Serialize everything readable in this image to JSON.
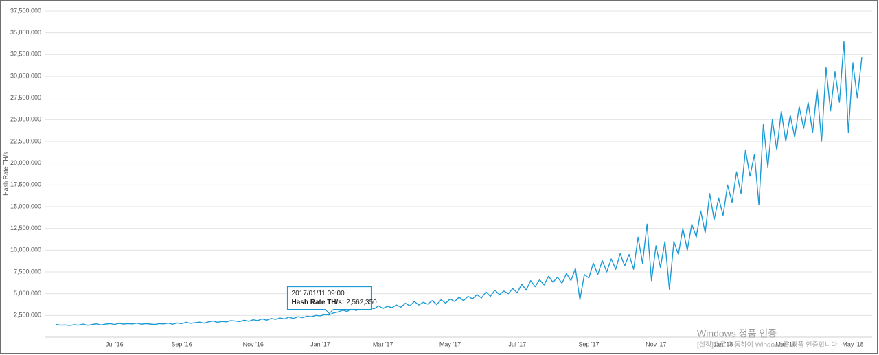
{
  "chart_data": {
    "type": "line",
    "y_label": "Hash Rate TH/s",
    "color": "#1a9ad6",
    "grid": true,
    "ylim": [
      0,
      37500000
    ],
    "yticks": [
      {
        "value": 2500000,
        "label": "2,500,000"
      },
      {
        "value": 5000000,
        "label": "5,000,000"
      },
      {
        "value": 7500000,
        "label": "7,500,000"
      },
      {
        "value": 10000000,
        "label": "10,000,000"
      },
      {
        "value": 12500000,
        "label": "12,500,000"
      },
      {
        "value": 15000000,
        "label": "15,000,000"
      },
      {
        "value": 17500000,
        "label": "17,500,000"
      },
      {
        "value": 20000000,
        "label": "20,000,000"
      },
      {
        "value": 22500000,
        "label": "22,500,000"
      },
      {
        "value": 25000000,
        "label": "25,000,000"
      },
      {
        "value": 27500000,
        "label": "27,500,000"
      },
      {
        "value": 30000000,
        "label": "30,000,000"
      },
      {
        "value": 32500000,
        "label": "32,500,000"
      },
      {
        "value": 35000000,
        "label": "35,000,000"
      },
      {
        "value": 37500000,
        "label": "37,500,000"
      }
    ],
    "categories": [
      null,
      null,
      null,
      null,
      null,
      null,
      null,
      null,
      null,
      null,
      null,
      null,
      null,
      "Jul '16",
      null,
      null,
      null,
      null,
      null,
      null,
      null,
      null,
      null,
      null,
      null,
      null,
      null,
      null,
      "Sep '16",
      null,
      null,
      null,
      null,
      null,
      null,
      null,
      null,
      null,
      null,
      null,
      null,
      null,
      null,
      null,
      "Nov '16",
      null,
      null,
      null,
      null,
      null,
      null,
      null,
      null,
      null,
      null,
      null,
      null,
      null,
      null,
      "Jan '17",
      null,
      null,
      null,
      null,
      null,
      null,
      null,
      null,
      null,
      null,
      null,
      null,
      null,
      "Mar '17",
      null,
      null,
      null,
      null,
      null,
      null,
      null,
      null,
      null,
      null,
      null,
      null,
      null,
      null,
      "May '17",
      null,
      null,
      null,
      null,
      null,
      null,
      null,
      null,
      null,
      null,
      null,
      null,
      null,
      null,
      "Jul '17",
      null,
      null,
      null,
      null,
      null,
      null,
      null,
      null,
      null,
      null,
      null,
      null,
      null,
      null,
      null,
      "Sep '17",
      null,
      null,
      null,
      null,
      null,
      null,
      null,
      null,
      null,
      null,
      null,
      null,
      null,
      null,
      "Nov '17",
      null,
      null,
      null,
      null,
      null,
      null,
      null,
      null,
      null,
      null,
      null,
      null,
      null,
      null,
      "Jan '18",
      null,
      null,
      null,
      null,
      null,
      null,
      null,
      null,
      null,
      null,
      null,
      null,
      null,
      "Mar '18",
      null,
      null,
      null,
      null,
      null,
      null,
      null,
      null,
      null,
      null,
      null,
      null,
      null,
      null,
      "May '18",
      null,
      null
    ],
    "values": [
      1450000,
      1380000,
      1400000,
      1350000,
      1420000,
      1380000,
      1500000,
      1360000,
      1450000,
      1520000,
      1400000,
      1500000,
      1550000,
      1450000,
      1580000,
      1500000,
      1550000,
      1520000,
      1600000,
      1480000,
      1550000,
      1500000,
      1450000,
      1550000,
      1520000,
      1600000,
      1480000,
      1620000,
      1550000,
      1700000,
      1580000,
      1650000,
      1720000,
      1600000,
      1750000,
      1850000,
      1700000,
      1800000,
      1750000,
      1900000,
      1850000,
      1780000,
      1950000,
      1820000,
      2000000,
      1900000,
      2100000,
      1950000,
      2150000,
      2050000,
      2200000,
      2100000,
      2300000,
      2150000,
      2350000,
      2250000,
      2400000,
      2350000,
      2500000,
      2450000,
      2600000,
      2562350,
      2800000,
      2900000,
      3100000,
      2950000,
      3300000,
      3050000,
      3400000,
      3150000,
      3500000,
      3250000,
      3600000,
      3300000,
      3550000,
      3400000,
      3700000,
      3450000,
      3900000,
      3600000,
      4100000,
      3700000,
      4000000,
      3800000,
      4200000,
      3750000,
      4300000,
      3900000,
      4400000,
      4100000,
      4600000,
      4200000,
      4700000,
      4400000,
      4900000,
      4500000,
      5200000,
      4700000,
      5400000,
      4900000,
      5300000,
      5000000,
      5600000,
      5100000,
      6100000,
      5400000,
      6500000,
      5800000,
      6600000,
      6000000,
      7000000,
      6300000,
      6900000,
      6200000,
      7300000,
      6500000,
      7900000,
      4300000,
      7200000,
      6800000,
      8500000,
      7200000,
      8800000,
      7500000,
      9000000,
      7800000,
      9600000,
      8200000,
      9500000,
      7800000,
      11500000,
      8500000,
      13000000,
      6500000,
      10500000,
      8000000,
      11000000,
      5500000,
      11000000,
      9500000,
      12500000,
      10000000,
      13000000,
      11500000,
      14500000,
      12000000,
      16500000,
      13500000,
      16000000,
      14000000,
      17500000,
      15500000,
      19000000,
      16500000,
      21500000,
      18500000,
      21000000,
      15200000,
      24500000,
      19500000,
      25000000,
      21500000,
      26000000,
      22500000,
      25500000,
      23000000,
      26500000,
      24000000,
      27000000,
      23500000,
      28500000,
      22500000,
      31000000,
      26000000,
      30500000,
      27000000,
      34000000,
      23500000,
      31500000,
      27500000,
      32200000
    ],
    "tooltip": {
      "title": "2017/01/11 09:00",
      "label": "Hash Rate TH/s:",
      "value_label": "2,562,350"
    }
  },
  "watermark": {
    "title": "Windows 정품 인증",
    "text": "[설정]으로 이동하여 Windows를 정품 인증합니다."
  }
}
